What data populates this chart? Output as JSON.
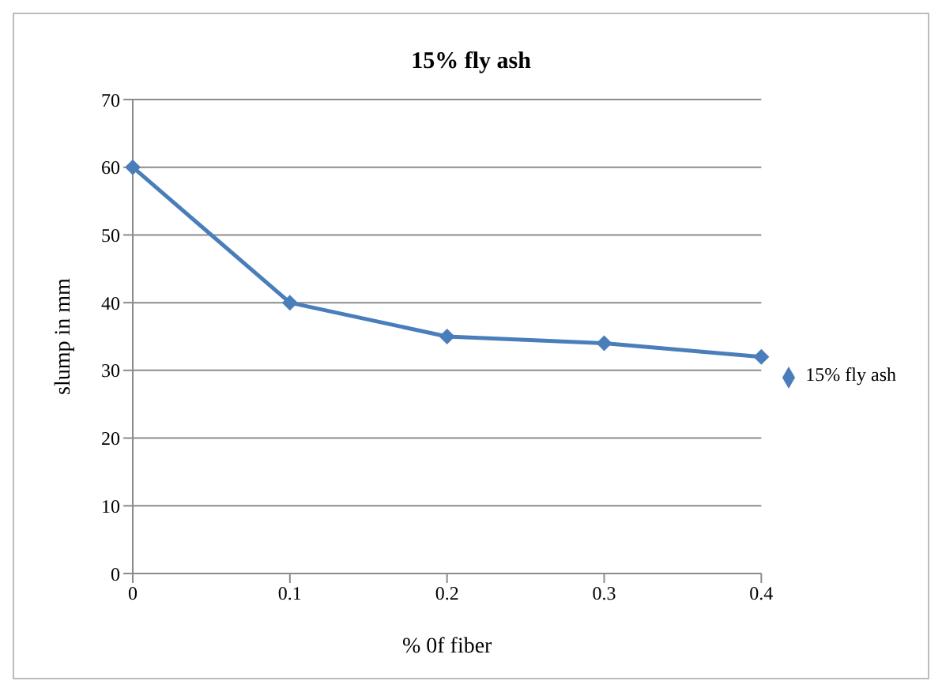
{
  "chart_data": {
    "type": "line",
    "title": "15% fly ash",
    "xlabel": "% 0f fiber",
    "ylabel": "slump in mm",
    "categories": [
      "0",
      "0.1",
      "0.2",
      "0.3",
      "0.4"
    ],
    "series": [
      {
        "name": "15% fly ash",
        "color": "#4a7ebb",
        "values": [
          60,
          40,
          35,
          34,
          32
        ]
      }
    ],
    "ylim": [
      0,
      70
    ],
    "yticks": [
      0,
      10,
      20,
      30,
      40,
      50,
      60,
      70
    ],
    "grid": "y",
    "legend": "right",
    "marker": "diamond",
    "line_style": "solid"
  }
}
